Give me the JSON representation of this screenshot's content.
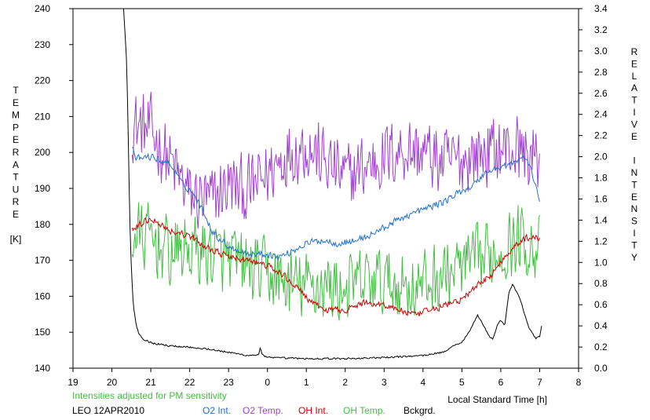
{
  "chart_data": {
    "type": "line",
    "xlabel": "Local Standard Time [h]",
    "ylabel_left_letters": [
      "T",
      "E",
      "M",
      "P",
      "E",
      "R",
      "A",
      "T",
      "U",
      "R",
      "E",
      "",
      "[K]"
    ],
    "ylabel_right_letters": [
      "R",
      "E",
      "L",
      "A",
      "T",
      "I",
      "V",
      "E",
      "",
      "I",
      "N",
      "T",
      "E",
      "N",
      "S",
      "I",
      "T",
      "Y"
    ],
    "note": "Intensities adjusted for PM sensitivity",
    "site_date": "LEO 12APR2010",
    "x_axis": {
      "min_hours": 19,
      "max_hours": 32,
      "step_hours": 1,
      "tick_labels": [
        "19",
        "20",
        "21",
        "22",
        "23",
        "0",
        "1",
        "2",
        "3",
        "4",
        "5",
        "6",
        "7",
        "8"
      ]
    },
    "y_left": {
      "min": 140,
      "max": 240,
      "step": 10,
      "tick_labels": [
        "140",
        "150",
        "160",
        "170",
        "180",
        "190",
        "200",
        "210",
        "220",
        "230",
        "240"
      ]
    },
    "y_right": {
      "min": 0.0,
      "max": 3.4,
      "step": 0.2,
      "tick_labels": [
        "0.0",
        "0.2",
        "0.4",
        "0.6",
        "0.8",
        "1.0",
        "1.2",
        "1.4",
        "1.6",
        "1.8",
        "2.0",
        "2.2",
        "2.4",
        "2.6",
        "2.8",
        "3.0",
        "3.2",
        "3.4"
      ]
    },
    "series": [
      {
        "name": "O2 Int.",
        "color": "#2070d0",
        "axis": "right",
        "noise": 0.03,
        "points": [
          [
            20.52,
            2.1
          ],
          [
            20.6,
            1.98
          ],
          [
            21.0,
            2.0
          ],
          [
            21.5,
            1.93
          ],
          [
            21.8,
            1.75
          ],
          [
            22.1,
            1.65
          ],
          [
            22.4,
            1.45
          ],
          [
            22.6,
            1.28
          ],
          [
            23.0,
            1.15
          ],
          [
            23.5,
            1.08
          ],
          [
            24.0,
            1.08
          ],
          [
            24.3,
            1.05
          ],
          [
            24.6,
            1.1
          ],
          [
            25.0,
            1.18
          ],
          [
            25.4,
            1.21
          ],
          [
            25.8,
            1.18
          ],
          [
            26.2,
            1.2
          ],
          [
            26.6,
            1.25
          ],
          [
            27.0,
            1.33
          ],
          [
            27.5,
            1.43
          ],
          [
            28.0,
            1.5
          ],
          [
            28.5,
            1.57
          ],
          [
            28.8,
            1.63
          ],
          [
            29.0,
            1.68
          ],
          [
            29.3,
            1.73
          ],
          [
            29.6,
            1.85
          ],
          [
            30.0,
            1.9
          ],
          [
            30.4,
            1.95
          ],
          [
            30.6,
            2.01
          ],
          [
            30.8,
            1.85
          ],
          [
            31.0,
            1.6
          ]
        ]
      },
      {
        "name": "O2 Temp.",
        "color": "#a040d0",
        "axis": "left",
        "noise": 9,
        "points": [
          [
            20.52,
            208
          ],
          [
            21.0,
            206
          ],
          [
            21.5,
            197
          ],
          [
            22.0,
            188
          ],
          [
            22.5,
            186
          ],
          [
            23.0,
            191
          ],
          [
            23.5,
            189
          ],
          [
            24.0,
            194
          ],
          [
            24.5,
            200
          ],
          [
            25.0,
            202
          ],
          [
            25.5,
            197
          ],
          [
            26.0,
            193
          ],
          [
            26.5,
            196
          ],
          [
            27.0,
            199
          ],
          [
            27.5,
            201
          ],
          [
            28.0,
            200
          ],
          [
            28.5,
            197
          ],
          [
            29.0,
            198
          ],
          [
            29.5,
            200
          ],
          [
            30.0,
            201
          ],
          [
            30.5,
            201
          ],
          [
            31.0,
            197
          ]
        ]
      },
      {
        "name": "OH Int.",
        "color": "#d00000",
        "axis": "right",
        "noise": 0.03,
        "points": [
          [
            20.52,
            1.3
          ],
          [
            20.8,
            1.38
          ],
          [
            21.0,
            1.42
          ],
          [
            21.5,
            1.3
          ],
          [
            22.0,
            1.25
          ],
          [
            22.4,
            1.15
          ],
          [
            23.0,
            1.05
          ],
          [
            23.5,
            1.02
          ],
          [
            24.0,
            0.97
          ],
          [
            24.4,
            0.88
          ],
          [
            24.8,
            0.75
          ],
          [
            25.2,
            0.6
          ],
          [
            25.5,
            0.55
          ],
          [
            26.0,
            0.55
          ],
          [
            26.5,
            0.62
          ],
          [
            27.0,
            0.6
          ],
          [
            27.4,
            0.55
          ],
          [
            27.8,
            0.5
          ],
          [
            28.2,
            0.55
          ],
          [
            28.6,
            0.6
          ],
          [
            29.0,
            0.65
          ],
          [
            29.4,
            0.78
          ],
          [
            29.8,
            0.9
          ],
          [
            30.2,
            1.1
          ],
          [
            30.5,
            1.2
          ],
          [
            30.8,
            1.25
          ],
          [
            31.0,
            1.22
          ]
        ]
      },
      {
        "name": "OH Temp.",
        "color": "#40c040",
        "axis": "left",
        "noise": 9,
        "points": [
          [
            20.52,
            177
          ],
          [
            21.0,
            176
          ],
          [
            21.5,
            172
          ],
          [
            22.0,
            173
          ],
          [
            22.5,
            172
          ],
          [
            23.0,
            170
          ],
          [
            23.5,
            168
          ],
          [
            24.0,
            166
          ],
          [
            24.5,
            163
          ],
          [
            25.0,
            163
          ],
          [
            25.5,
            163
          ],
          [
            26.0,
            162
          ],
          [
            26.5,
            164
          ],
          [
            27.0,
            164
          ],
          [
            27.5,
            163
          ],
          [
            28.0,
            163
          ],
          [
            28.5,
            166
          ],
          [
            29.0,
            168
          ],
          [
            29.5,
            170
          ],
          [
            30.0,
            173
          ],
          [
            30.5,
            176
          ],
          [
            31.0,
            173
          ]
        ]
      },
      {
        "name": "Bckgrd.",
        "color": "#000000",
        "axis": "right",
        "noise": 0.008,
        "points": [
          [
            20.3,
            3.4
          ],
          [
            20.38,
            2.9
          ],
          [
            20.42,
            2.2
          ],
          [
            20.46,
            1.4
          ],
          [
            20.5,
            0.95
          ],
          [
            20.55,
            0.6
          ],
          [
            20.62,
            0.42
          ],
          [
            20.7,
            0.32
          ],
          [
            20.8,
            0.28
          ],
          [
            21.0,
            0.24
          ],
          [
            21.5,
            0.21
          ],
          [
            22.0,
            0.2
          ],
          [
            22.5,
            0.18
          ],
          [
            23.0,
            0.15
          ],
          [
            23.5,
            0.12
          ],
          [
            23.78,
            0.13
          ],
          [
            23.82,
            0.2
          ],
          [
            23.86,
            0.13
          ],
          [
            24.0,
            0.1
          ],
          [
            25.0,
            0.09
          ],
          [
            26.0,
            0.09
          ],
          [
            27.0,
            0.1
          ],
          [
            28.0,
            0.12
          ],
          [
            28.5,
            0.15
          ],
          [
            29.0,
            0.25
          ],
          [
            29.2,
            0.35
          ],
          [
            29.4,
            0.5
          ],
          [
            29.5,
            0.45
          ],
          [
            29.7,
            0.3
          ],
          [
            29.8,
            0.28
          ],
          [
            29.9,
            0.4
          ],
          [
            30.0,
            0.45
          ],
          [
            30.1,
            0.4
          ],
          [
            30.2,
            0.7
          ],
          [
            30.3,
            0.8
          ],
          [
            30.5,
            0.65
          ],
          [
            30.7,
            0.4
          ],
          [
            30.9,
            0.28
          ],
          [
            31.0,
            0.3
          ],
          [
            31.05,
            0.4
          ]
        ]
      }
    ]
  }
}
